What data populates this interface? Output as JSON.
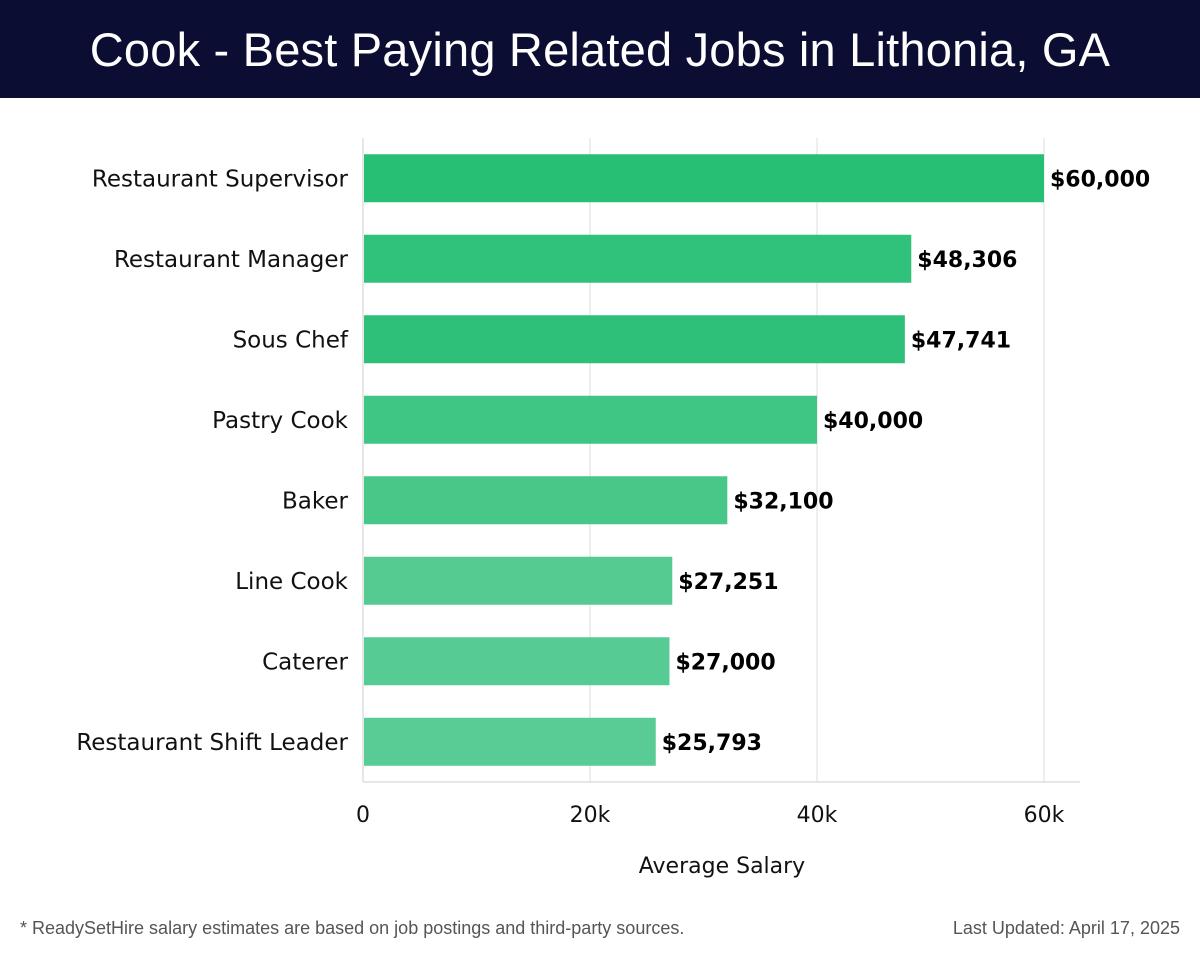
{
  "header": {
    "title": "Cook - Best Paying Related Jobs in Lithonia, GA"
  },
  "chart_data": {
    "type": "bar",
    "orientation": "horizontal",
    "title": "Cook - Best Paying Related Jobs in Lithonia, GA",
    "categories": [
      "Restaurant Supervisor",
      "Restaurant Manager",
      "Sous Chef",
      "Pastry Cook",
      "Baker",
      "Line Cook",
      "Caterer",
      "Restaurant Shift Leader"
    ],
    "values": [
      60000,
      48306,
      47741,
      40000,
      32100,
      27251,
      27000,
      25793
    ],
    "value_labels": [
      "$60,000",
      "$48,306",
      "$47,741",
      "$40,000",
      "$32,100",
      "$27,251",
      "$27,000",
      "$25,793"
    ],
    "xlabel": "Average Salary",
    "ylabel": "",
    "xlim": [
      0,
      63000
    ],
    "xticks": [
      0,
      20000,
      40000,
      60000
    ],
    "xtick_labels": [
      "0",
      "20k",
      "40k",
      "60k"
    ],
    "grid": true,
    "bar_colors": [
      "#27bf74",
      "#30c27a",
      "#2ec078",
      "#3fc584",
      "#48c789",
      "#55cb92",
      "#56cb93",
      "#58cc94"
    ]
  },
  "footer": {
    "note": "* ReadySetHire salary estimates are based on job postings and third-party sources.",
    "updated": "Last Updated: April 17, 2025"
  }
}
